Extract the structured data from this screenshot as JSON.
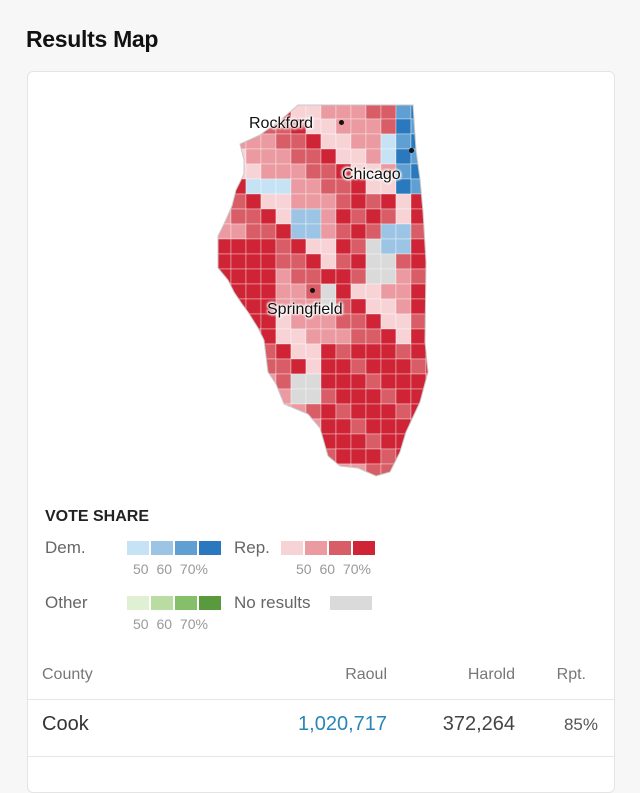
{
  "page": {
    "title": "Results Map"
  },
  "map": {
    "cities": [
      {
        "name": "Rockford"
      },
      {
        "name": "Chicago"
      },
      {
        "name": "Springfield"
      }
    ],
    "colors": {
      "dem": [
        "#c6e2f5",
        "#9cc4e4",
        "#5f9fd1",
        "#2a78bd"
      ],
      "rep": [
        "#f7d3d6",
        "#ea9aa0",
        "#d95d66",
        "#cf2436"
      ],
      "other": [
        "#dff0d3",
        "#b9dca3",
        "#86bf6a",
        "#5a9a3e"
      ],
      "no_results": "#dadada"
    }
  },
  "legend": {
    "title": "VOTE SHARE",
    "dem_label": "Dem.",
    "rep_label": "Rep.",
    "other_label": "Other",
    "no_results_label": "No results",
    "ticks": "50 60 70%"
  },
  "table": {
    "headers": {
      "county": "County",
      "c1": "Raoul",
      "c2": "Harold",
      "rpt": "Rpt."
    },
    "rows": [
      {
        "county": "Cook",
        "c1": "1,020,717",
        "c2": "372,264",
        "rpt": "85%"
      }
    ],
    "winner_color": "#2a86b8"
  }
}
